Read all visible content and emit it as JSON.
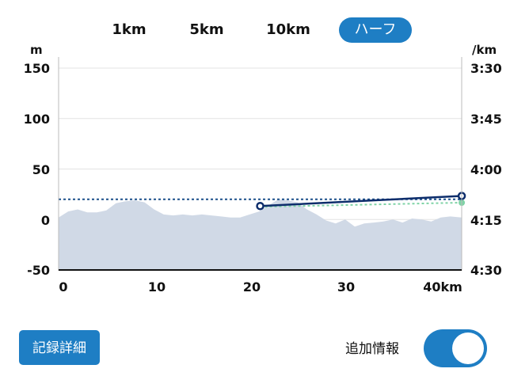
{
  "tabs": [
    {
      "label": "1km",
      "active": false
    },
    {
      "label": "5km",
      "active": false
    },
    {
      "label": "10km",
      "active": false
    },
    {
      "label": "ハーフ",
      "active": true
    }
  ],
  "chart_data": {
    "type": "line",
    "left_axis": {
      "unit": "m",
      "ticks": [
        150,
        100,
        50,
        0,
        -50
      ],
      "range": [
        -50,
        150
      ]
    },
    "right_axis": {
      "unit": "/km",
      "ticks": [
        "3:30",
        "3:45",
        "4:00",
        "4:15",
        "4:30"
      ],
      "range_sec": [
        210,
        270
      ]
    },
    "x_axis": {
      "ticks": [
        "0",
        "10",
        "20",
        "30",
        "40km"
      ],
      "range": [
        0,
        42.195
      ]
    },
    "elevation": {
      "x": [
        0,
        1,
        2,
        3,
        4,
        5,
        6,
        7,
        8,
        9,
        10,
        11,
        12,
        13,
        14,
        15,
        16,
        17,
        18,
        19,
        20,
        21,
        22,
        23,
        24,
        25,
        26,
        27,
        28,
        29,
        30,
        31,
        32,
        33,
        34,
        35,
        36,
        37,
        38,
        39,
        40,
        41,
        42.195
      ],
      "y": [
        2,
        8,
        10,
        7,
        7,
        9,
        16,
        18,
        19,
        17,
        10,
        5,
        4,
        5,
        4,
        5,
        4,
        3,
        2,
        2,
        5,
        8,
        14,
        20,
        19,
        17,
        10,
        5,
        -1,
        -4,
        0,
        -7,
        -4,
        -3,
        -2,
        0,
        -3,
        1,
        0,
        -2,
        2,
        3,
        2
      ]
    },
    "target_pace": "4:09",
    "pace_line": [
      {
        "x": 21.1,
        "pace": "4:11"
      },
      {
        "x": 42.2,
        "pace": "4:08"
      }
    ],
    "projected_end_pace": "4:10",
    "colors": {
      "elevation": "#d0d9e6",
      "pace": "#0d2d6b",
      "target": "#1a4f8a",
      "projection": "#7fd3a6"
    }
  },
  "buttons": {
    "detail_label": "記録詳細"
  },
  "toggle": {
    "label": "追加情報",
    "on": true
  }
}
